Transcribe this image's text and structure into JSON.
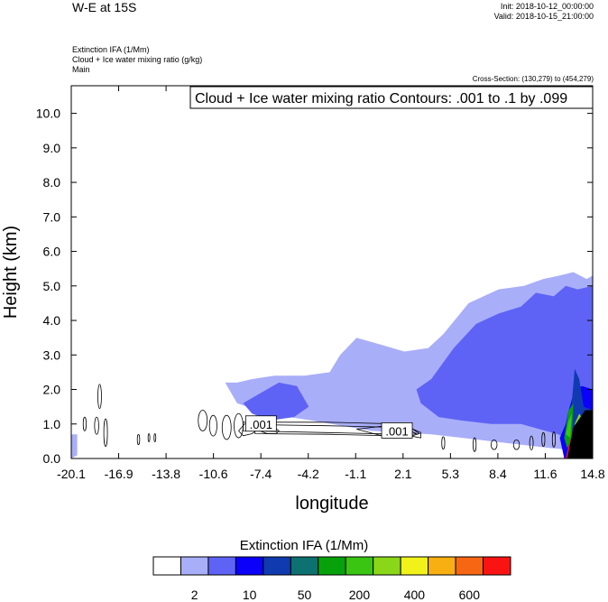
{
  "header": {
    "title": "W-E at 15S",
    "init": "Init: 2018-10-12_00:00:00",
    "valid": "Valid: 2018-10-15_21:00:00",
    "field1": "Extinction IFA   (1/Mm)",
    "field2": "Cloud + Ice water mixing ratio   (g/kg)",
    "field3": "Main",
    "cross_section": "Cross-Section: (130,279) to (454,279)"
  },
  "chart_data": {
    "type": "area",
    "ylabel": "Height (km)",
    "xlabel": "longitude",
    "xlim": [
      -20.1,
      14.8
    ],
    "ylim": [
      0,
      10.8
    ],
    "x_ticks": [
      "-20.1",
      "-16.9",
      "-13.8",
      "-10.6",
      "-7.4",
      "-4.2",
      "-1.1",
      "2.1",
      "5.3",
      "8.4",
      "11.6",
      "14.8"
    ],
    "y_ticks": [
      "0.0",
      "1.0",
      "2.0",
      "3.0",
      "4.0",
      "5.0",
      "6.0",
      "7.0",
      "8.0",
      "9.0",
      "10.0"
    ],
    "contour_box": "Cloud + Ice water mixing ratio Contours: .001 to .1 by .099",
    "contour_labels": [
      {
        "text": ".001",
        "x": -7.4,
        "y": 1.0
      },
      {
        "text": ".001",
        "x": 1.7,
        "y": 0.8
      }
    ],
    "shading": [
      {
        "level": 1,
        "x": [
          -9.8,
          -9.0,
          -8.0,
          -6.5,
          -4.5,
          -2.8,
          -2.1,
          -1.0,
          0.6,
          2.2,
          3.8,
          4.8,
          6.5,
          8.5,
          10.2,
          11.5,
          12.6,
          13.5,
          14.4,
          14.8,
          14.8,
          12.0,
          8.0,
          4.0,
          0.0,
          -4.0,
          -7.0,
          -9.0,
          -9.8
        ],
        "y": [
          2.2,
          2.2,
          2.3,
          2.4,
          2.4,
          2.5,
          3.0,
          3.5,
          3.3,
          3.1,
          3.2,
          3.6,
          4.5,
          4.9,
          5.0,
          5.2,
          5.3,
          5.4,
          5.2,
          5.3,
          0.2,
          0.3,
          0.5,
          0.7,
          0.8,
          1.1,
          1.3,
          1.6,
          2.2
        ]
      },
      {
        "level": 1,
        "x": [
          -20.1,
          -19.7,
          -19.7,
          -20.1
        ],
        "y": [
          0.7,
          0.7,
          0.1,
          0.0
        ]
      },
      {
        "level": 2,
        "x": [
          -8.6,
          -7.4,
          -6.2,
          -5.0,
          -4.2,
          -5.2,
          -6.8,
          -8.0,
          -8.6
        ],
        "y": [
          1.6,
          1.9,
          2.2,
          2.1,
          1.5,
          1.2,
          1.1,
          1.3,
          1.6
        ]
      },
      {
        "level": 2,
        "x": [
          3.0,
          4.0,
          5.5,
          7.0,
          8.5,
          10.0,
          11.0,
          12.2,
          13.0,
          13.8,
          14.8,
          14.8,
          12.5,
          10.0,
          8.0,
          6.0,
          4.5,
          3.3,
          3.0
        ],
        "y": [
          2.0,
          2.3,
          3.2,
          3.9,
          4.2,
          4.4,
          4.8,
          4.7,
          5.0,
          4.9,
          5.0,
          0.2,
          0.7,
          1.0,
          1.0,
          1.1,
          1.2,
          1.6,
          2.0
        ]
      },
      {
        "level": 3,
        "x": [
          13.2,
          13.6,
          14.1,
          14.8,
          14.8,
          12.9,
          12.6,
          13.0,
          13.2
        ],
        "y": [
          1.4,
          2.0,
          2.1,
          2.0,
          0.0,
          0.0,
          0.6,
          1.0,
          1.4
        ]
      },
      {
        "level": 4,
        "x": [
          13.4,
          13.6,
          13.9,
          14.2,
          14.8,
          14.8,
          13.2,
          13.4
        ],
        "y": [
          1.6,
          2.6,
          2.3,
          1.5,
          1.4,
          0.0,
          0.0,
          1.6
        ]
      },
      {
        "level": 6,
        "x": [
          12.9,
          13.2,
          13.5,
          13.4,
          13.1,
          12.9
        ],
        "y": [
          0.6,
          1.4,
          1.6,
          0.6,
          0.3,
          0.6
        ]
      },
      {
        "level": 7,
        "x": [
          13.0,
          13.2,
          13.4,
          13.3,
          13.0
        ],
        "y": [
          0.7,
          1.1,
          1.3,
          0.6,
          0.7
        ]
      },
      {
        "level": 8,
        "x": [
          13.6,
          13.9,
          14.2,
          14.1,
          13.8,
          13.6
        ],
        "y": [
          1.0,
          1.3,
          1.1,
          0.6,
          0.5,
          1.0
        ]
      },
      {
        "level": 12,
        "x": [
          13.2,
          13.6,
          14.3,
          14.8,
          14.8,
          13.0,
          13.2
        ],
        "y": [
          0.4,
          0.9,
          1.4,
          1.4,
          0.0,
          0.0,
          0.4
        ]
      }
    ],
    "black_region": {
      "x": [
        13.1,
        13.5,
        14.3,
        14.8,
        14.8,
        13.1
      ],
      "y": [
        0.0,
        0.9,
        1.4,
        1.4,
        0.0,
        0.0
      ]
    },
    "contour_lines": {
      "ellipses": [
        {
          "cx": -18.2,
          "cy": 1.8,
          "rx": 0.12,
          "ry": 0.35
        },
        {
          "cx": -19.2,
          "cy": 1.0,
          "rx": 0.1,
          "ry": 0.2
        },
        {
          "cx": -18.4,
          "cy": 0.95,
          "rx": 0.14,
          "ry": 0.25
        },
        {
          "cx": -17.8,
          "cy": 0.75,
          "rx": 0.12,
          "ry": 0.4
        },
        {
          "cx": -15.6,
          "cy": 0.55,
          "rx": 0.08,
          "ry": 0.15
        },
        {
          "cx": -14.9,
          "cy": 0.6,
          "rx": 0.06,
          "ry": 0.12
        },
        {
          "cx": -14.5,
          "cy": 0.6,
          "rx": 0.06,
          "ry": 0.12
        },
        {
          "cx": -11.3,
          "cy": 1.1,
          "rx": 0.3,
          "ry": 0.3
        },
        {
          "cx": -10.6,
          "cy": 0.95,
          "rx": 0.25,
          "ry": 0.3
        },
        {
          "cx": -9.7,
          "cy": 0.9,
          "rx": 0.3,
          "ry": 0.35
        },
        {
          "cx": -8.9,
          "cy": 0.95,
          "rx": 0.3,
          "ry": 0.35
        },
        {
          "cx": 4.8,
          "cy": 0.45,
          "rx": 0.1,
          "ry": 0.18
        },
        {
          "cx": 6.9,
          "cy": 0.4,
          "rx": 0.1,
          "ry": 0.2
        },
        {
          "cx": 8.2,
          "cy": 0.4,
          "rx": 0.2,
          "ry": 0.14
        },
        {
          "cx": 9.7,
          "cy": 0.4,
          "rx": 0.2,
          "ry": 0.14
        },
        {
          "cx": 10.7,
          "cy": 0.45,
          "rx": 0.12,
          "ry": 0.2
        },
        {
          "cx": 11.5,
          "cy": 0.55,
          "rx": 0.1,
          "ry": 0.2
        },
        {
          "cx": 12.2,
          "cy": 0.55,
          "rx": 0.1,
          "ry": 0.22
        }
      ],
      "polylines": [
        {
          "x": [
            -8.6,
            -3.0,
            2.0,
            3.3,
            3.3,
            2.0,
            -3.0,
            -8.6,
            -8.6
          ],
          "y": [
            1.05,
            1.05,
            1.0,
            0.75,
            0.6,
            0.7,
            0.75,
            0.8,
            1.05
          ]
        },
        {
          "x": [
            -7.8,
            -3.0,
            2.0,
            3.0,
            2.0,
            -3.0,
            -7.8,
            -7.8
          ],
          "y": [
            0.98,
            0.95,
            0.9,
            0.72,
            0.65,
            0.7,
            0.72,
            0.98
          ]
        },
        {
          "x": [
            -7.6,
            -7.2,
            -6.5,
            -6.2,
            -6.4,
            -7.0,
            -7.6
          ],
          "y": [
            0.82,
            0.9,
            0.9,
            0.8,
            0.72,
            0.72,
            0.82
          ]
        },
        {
          "x": [
            -8.9,
            -8.5,
            -8.0,
            -7.6,
            -8.0,
            -8.6,
            -8.9
          ],
          "y": [
            0.8,
            1.0,
            1.05,
            0.85,
            0.72,
            0.66,
            0.8
          ]
        },
        {
          "x": [
            -1.0,
            1.0,
            2.6,
            3.2,
            2.4,
            0.5,
            -1.0
          ],
          "y": [
            0.85,
            0.95,
            0.9,
            0.72,
            0.62,
            0.68,
            0.85
          ]
        }
      ]
    },
    "colorbar": {
      "title": "Extinction IFA  (1/Mm)",
      "colors": [
        "#ffffff",
        "#a9aef8",
        "#5e63f5",
        "#0b00f9",
        "#0f3ab0",
        "#0c7170",
        "#07a20b",
        "#39c512",
        "#8ad619",
        "#f0f219",
        "#f7af11",
        "#f76713",
        "#fa1313"
      ],
      "labels": [
        {
          "text": "2",
          "after_box": 1
        },
        {
          "text": "10",
          "after_box": 3
        },
        {
          "text": "50",
          "after_box": 5
        },
        {
          "text": "200",
          "after_box": 7
        },
        {
          "text": "400",
          "after_box": 9
        },
        {
          "text": "600",
          "after_box": 11
        }
      ]
    }
  }
}
